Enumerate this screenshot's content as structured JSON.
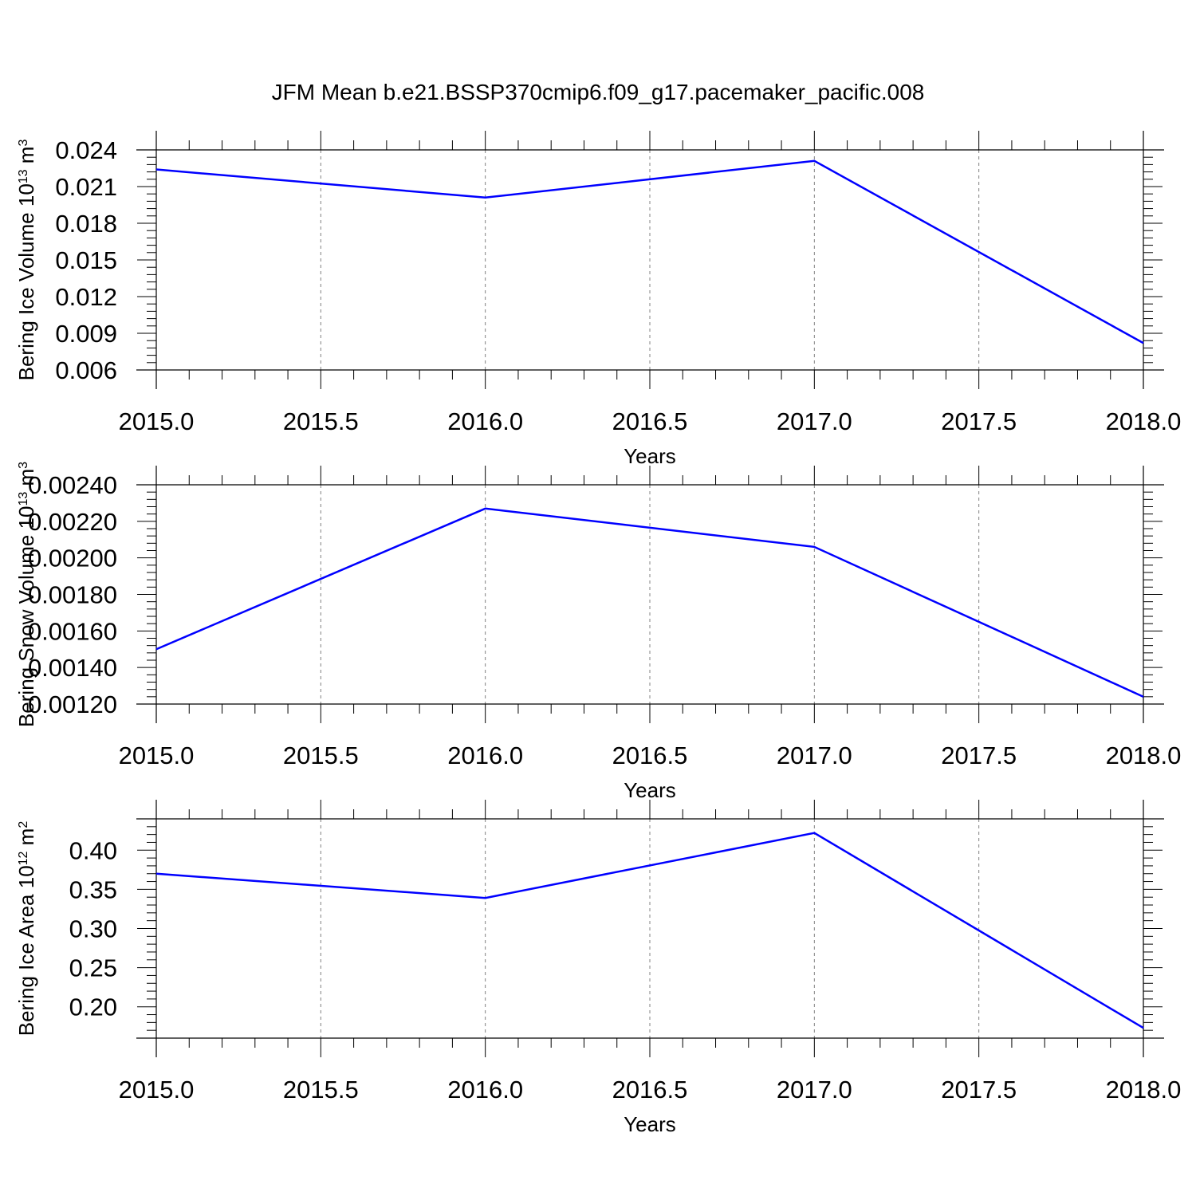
{
  "title": "JFM Mean b.e21.BSSP370cmip6.f09_g17.pacemaker_pacific.008",
  "colors": {
    "series": "#0000ff",
    "axis": "#000000",
    "grid": "#808080"
  },
  "chart_data": [
    {
      "type": "line",
      "xlabel": "Years",
      "ylabel_prefix": "Bering Ice Volume 10",
      "ylabel_exp": "13",
      "ylabel_unit": " m",
      "ylabel_unit_exp": "3",
      "xlim": [
        2015.0,
        2018.0
      ],
      "ylim": [
        0.006,
        0.024
      ],
      "xticks": [
        2015.0,
        2015.5,
        2016.0,
        2016.5,
        2017.0,
        2017.5,
        2018.0
      ],
      "xtick_labels": [
        "2015.0",
        "2015.5",
        "2016.0",
        "2016.5",
        "2017.0",
        "2017.5",
        "2018.0"
      ],
      "yticks": [
        0.006,
        0.009,
        0.012,
        0.015,
        0.018,
        0.021,
        0.024
      ],
      "ytick_labels": [
        "0.006",
        "0.009",
        "0.012",
        "0.015",
        "0.018",
        "0.021",
        "0.024"
      ],
      "grid": "vertical dashed",
      "series": [
        {
          "x": [
            2015,
            2016,
            2017,
            2018
          ],
          "values": [
            0.0224,
            0.0201,
            0.0231,
            0.0082
          ]
        }
      ]
    },
    {
      "type": "line",
      "xlabel": "Years",
      "ylabel_prefix": "Bering Snow Volume 10",
      "ylabel_exp": "13",
      "ylabel_unit": " m",
      "ylabel_unit_exp": "3",
      "xlim": [
        2015.0,
        2018.0
      ],
      "ylim": [
        0.0012,
        0.0024
      ],
      "xticks": [
        2015.0,
        2015.5,
        2016.0,
        2016.5,
        2017.0,
        2017.5,
        2018.0
      ],
      "xtick_labels": [
        "2015.0",
        "2015.5",
        "2016.0",
        "2016.5",
        "2017.0",
        "2017.5",
        "2018.0"
      ],
      "yticks": [
        0.0012,
        0.0014,
        0.0016,
        0.0018,
        0.002,
        0.0022,
        0.0024
      ],
      "ytick_labels": [
        "0.00120",
        "0.00140",
        "0.00160",
        "0.00180",
        "0.00200",
        "0.00220",
        "0.00240"
      ],
      "grid": "vertical dashed",
      "series": [
        {
          "x": [
            2015,
            2016,
            2017,
            2018
          ],
          "values": [
            0.0015,
            0.00227,
            0.00206,
            0.00124
          ]
        }
      ]
    },
    {
      "type": "line",
      "xlabel": "Years",
      "ylabel_prefix": "Bering Ice Area 10",
      "ylabel_exp": "12",
      "ylabel_unit": " m",
      "ylabel_unit_exp": "2",
      "xlim": [
        2015.0,
        2018.0
      ],
      "ylim": [
        0.16,
        0.44
      ],
      "xticks": [
        2015.0,
        2015.5,
        2016.0,
        2016.5,
        2017.0,
        2017.5,
        2018.0
      ],
      "xtick_labels": [
        "2015.0",
        "2015.5",
        "2016.0",
        "2016.5",
        "2017.0",
        "2017.5",
        "2018.0"
      ],
      "yticks": [
        0.2,
        0.25,
        0.3,
        0.35,
        0.4
      ],
      "ytick_labels": [
        "0.20",
        "0.25",
        "0.30",
        "0.35",
        "0.40"
      ],
      "grid": "vertical dashed",
      "series": [
        {
          "x": [
            2015,
            2016,
            2017,
            2018
          ],
          "values": [
            0.37,
            0.339,
            0.422,
            0.173
          ]
        }
      ]
    }
  ]
}
